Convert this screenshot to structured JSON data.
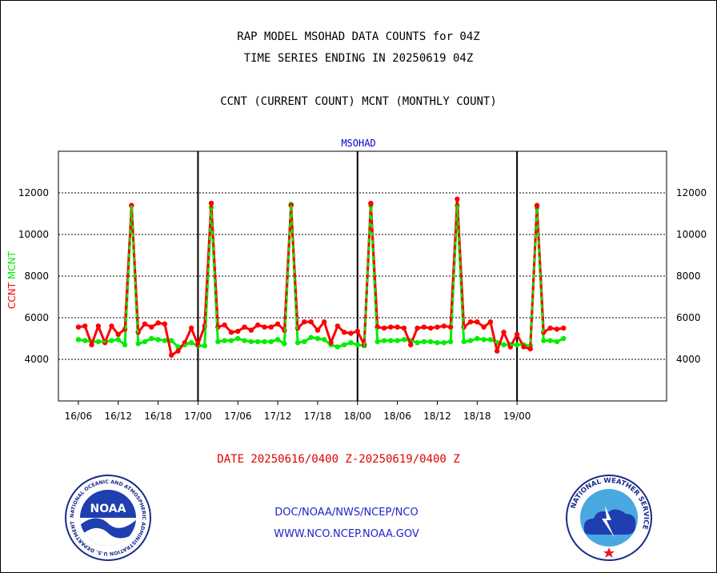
{
  "header": {
    "title_line1": "RAP MODEL MSOHAD DATA COUNTS for 04Z",
    "title_line2": "TIME SERIES ENDING IN 20250619 04Z",
    "title_line3": "CCNT (CURRENT COUNT) MCNT (MONTHLY COUNT)"
  },
  "chart_data": {
    "type": "line",
    "title": "MSOHAD",
    "ylabel": [
      "CCNT",
      "MCNT"
    ],
    "ylim": [
      2000,
      14000
    ],
    "yticks": [
      4000,
      6000,
      8000,
      10000,
      12000
    ],
    "xlim_hours": [
      -3,
      88.5
    ],
    "x_tick_labels": [
      "16/06",
      "16/12",
      "16/18",
      "17/00",
      "17/06",
      "17/12",
      "17/18",
      "18/00",
      "18/06",
      "18/12",
      "18/18",
      "19/00"
    ],
    "grid": true,
    "day_boundaries": [
      "17/00",
      "18/00",
      "19/00"
    ],
    "x_step_hours": 1,
    "series": [
      {
        "name": "CCNT",
        "color": "#ff0000",
        "values": [
          5550,
          5600,
          4700,
          5600,
          4800,
          5600,
          5200,
          5450,
          11400,
          5300,
          5700,
          5550,
          5750,
          5700,
          4200,
          4400,
          4800,
          5500,
          4700,
          5600,
          11500,
          5550,
          5650,
          5300,
          5350,
          5550,
          5400,
          5650,
          5550,
          5550,
          5700,
          5400,
          11400,
          5500,
          5800,
          5800,
          5400,
          5800,
          4800,
          5600,
          5300,
          5250,
          5350,
          4700,
          11500,
          5550,
          5500,
          5550,
          5550,
          5500,
          4700,
          5500,
          5550,
          5500,
          5550,
          5600,
          5550,
          11700,
          5550,
          5800,
          5800,
          5550,
          5800,
          4400,
          5300,
          4600,
          5200,
          4600,
          4500,
          11400,
          5300,
          5500,
          5450,
          5500
        ]
      },
      {
        "name": "MCNT",
        "color": "#00ee00",
        "values": [
          4950,
          4900,
          4850,
          4850,
          4850,
          4900,
          4950,
          4700,
          11400,
          4750,
          4850,
          5000,
          4950,
          4900,
          4900,
          4600,
          4700,
          4800,
          4650,
          4650,
          11300,
          4850,
          4900,
          4900,
          5000,
          4900,
          4850,
          4850,
          4850,
          4850,
          4950,
          4750,
          11450,
          4800,
          4850,
          5050,
          5000,
          4950,
          4700,
          4600,
          4700,
          4800,
          4700,
          4650,
          11400,
          4850,
          4900,
          4900,
          4900,
          4950,
          4900,
          4800,
          4850,
          4850,
          4800,
          4800,
          4850,
          11400,
          4850,
          4900,
          5000,
          4950,
          4950,
          4800,
          4700,
          4700,
          4700,
          4700,
          4650,
          11300,
          4900,
          4900,
          4850,
          5000
        ]
      }
    ]
  },
  "footer": {
    "date_range": "DATE 20250616/0400 Z-20250619/0400 Z",
    "org_path": "DOC/NOAA/NWS/NCEP/NCO",
    "org_url": "WWW.NCO.NCEP.NOAA.GOV",
    "noaa_logo_text": "NOAA",
    "noaa_ring_text": "NATIONAL OCEANIC AND ATMOSPHERIC ADMINISTRATION U.S. DEPARTMENT OF COMMERCE",
    "nws_ring_text": "NATIONAL WEATHER SERVICE"
  }
}
